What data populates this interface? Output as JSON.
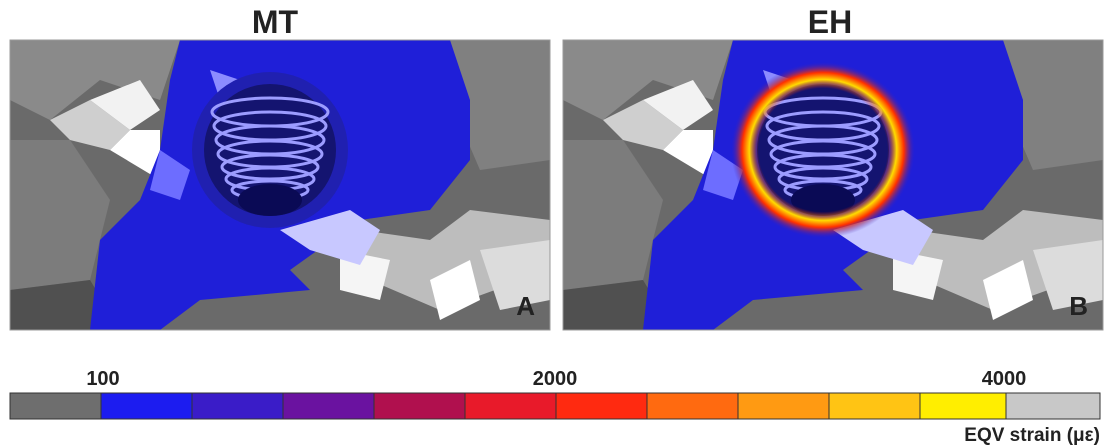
{
  "panels": [
    {
      "title": "MT",
      "letter": "A"
    },
    {
      "title": "EH",
      "letter": "B"
    }
  ],
  "colorbar": {
    "labels": [
      "100",
      "2000",
      "4000"
    ],
    "caption": "EQV strain (με)"
  }
}
